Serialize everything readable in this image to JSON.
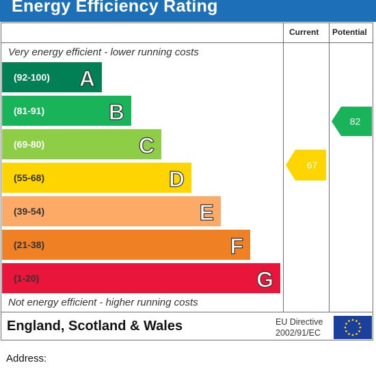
{
  "header": {
    "title": "Energy Efficiency Rating"
  },
  "columns": {
    "current": "Current",
    "potential": "Potential"
  },
  "notes": {
    "top": "Very energy efficient - lower running costs",
    "bottom": "Not energy efficient - higher running costs"
  },
  "footer": {
    "region": "England, Scotland & Wales",
    "directive_line1": "EU Directive",
    "directive_line2": "2002/91/EC",
    "flag_icon": "eu-flag-icon"
  },
  "address": {
    "label": "Address:"
  },
  "chart_data": {
    "type": "bar",
    "bands": [
      {
        "letter": "A",
        "range": "(92-100)",
        "color": "#008054",
        "text_color": "#ffffff"
      },
      {
        "letter": "B",
        "range": "(81-91)",
        "color": "#19b459",
        "text_color": "#ffffff"
      },
      {
        "letter": "C",
        "range": "(69-80)",
        "color": "#8dce46",
        "text_color": "#ffffff"
      },
      {
        "letter": "D",
        "range": "(55-68)",
        "color": "#ffd500",
        "text_color": "#333333"
      },
      {
        "letter": "E",
        "range": "(39-54)",
        "color": "#fcaa65",
        "text_color": "#333333"
      },
      {
        "letter": "F",
        "range": "(21-38)",
        "color": "#ef8023",
        "text_color": "#333333"
      },
      {
        "letter": "G",
        "range": "(1-20)",
        "color": "#e9153b",
        "text_color": "#333333"
      }
    ],
    "current": {
      "value": 67,
      "band": "D",
      "color": "#ffd500"
    },
    "potential": {
      "value": 82,
      "band": "B",
      "color": "#19b459"
    }
  }
}
